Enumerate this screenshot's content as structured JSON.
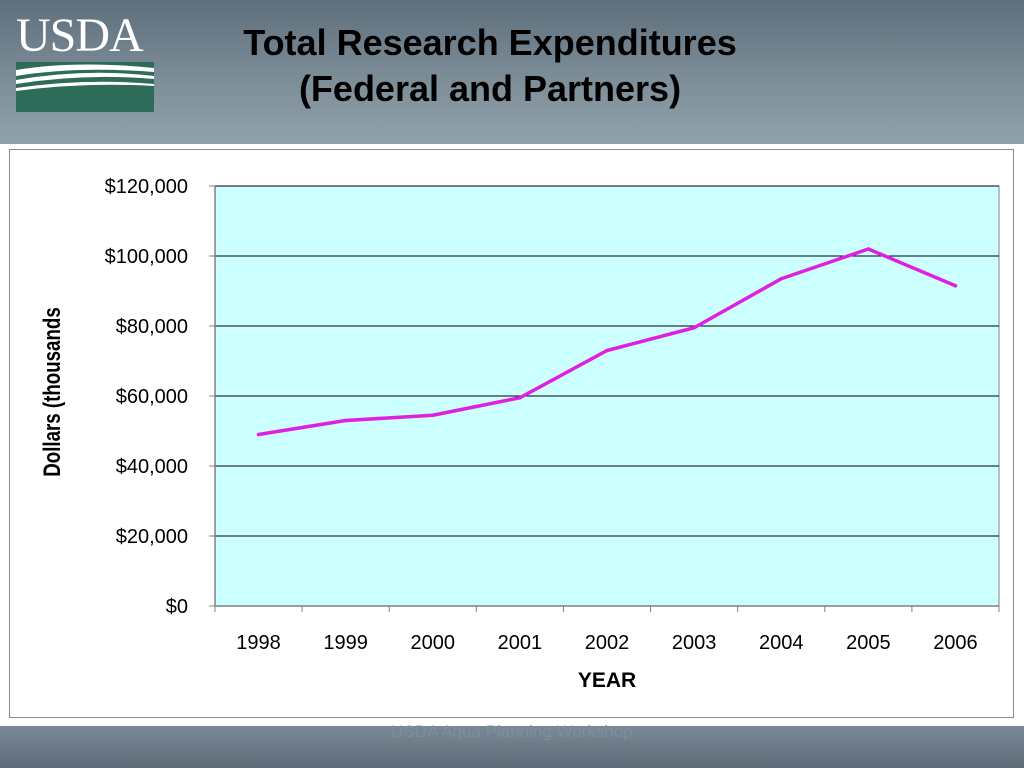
{
  "logo": {
    "text": "USDA",
    "colors": {
      "navy": "#1f3a6b",
      "green": "#2e6b58",
      "stripe": "#ffffff"
    }
  },
  "slide": {
    "title_line1": "Total Research Expenditures",
    "title_line2": "(Federal and Partners)",
    "footer": "USDA Aqua Planning Workshop"
  },
  "chart_data": {
    "type": "line",
    "categories": [
      "1998",
      "1999",
      "2000",
      "2001",
      "2002",
      "2003",
      "2004",
      "2005",
      "2006"
    ],
    "series": [
      {
        "values": [
          49000,
          53000,
          54500,
          59500,
          73000,
          79500,
          93500,
          102000,
          91500
        ]
      }
    ],
    "xlabel": "YEAR",
    "ylabel": "Dollars (thousands",
    "ylim": [
      0,
      120000
    ],
    "yticks": [
      0,
      20000,
      40000,
      60000,
      80000,
      100000,
      120000
    ],
    "ytick_labels": [
      "$0",
      "$20,000",
      "$40,000",
      "$60,000",
      "$80,000",
      "$100,000",
      "$120,000"
    ],
    "grid": true,
    "colors": {
      "plot_bg": "#ccffff",
      "line": "#e020e0",
      "grid": "#000000"
    }
  }
}
